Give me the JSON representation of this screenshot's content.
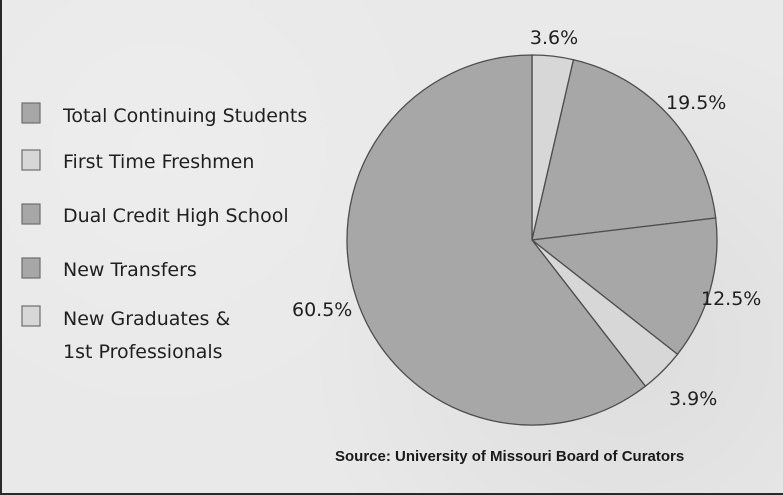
{
  "chart_data": {
    "type": "pie",
    "title": "",
    "legend": {
      "placement": "left",
      "entries": [
        {
          "label": "Total Continuing Students",
          "color": "#a7a7a7"
        },
        {
          "label": "First Time Freshmen",
          "color": "#d7d7d7"
        },
        {
          "label": "Dual Credit High School",
          "color": "#a7a7a7"
        },
        {
          "label": "New Transfers",
          "color": "#a7a7a7"
        },
        {
          "label": "New Graduates & 1st Professionals",
          "color": "#d7d7d7"
        }
      ]
    },
    "slices": [
      {
        "label": "3.6%",
        "value": 3.6,
        "color": "#d7d7d7"
      },
      {
        "label": "19.5%",
        "value": 19.5,
        "color": "#a7a7a7"
      },
      {
        "label": "12.5%",
        "value": 12.5,
        "color": "#a7a7a7"
      },
      {
        "label": "3.9%",
        "value": 3.9,
        "color": "#d7d7d7"
      },
      {
        "label": "60.5%",
        "value": 60.5,
        "color": "#a7a7a7"
      }
    ],
    "source": "Source: University of Missouri Board of Curators"
  }
}
